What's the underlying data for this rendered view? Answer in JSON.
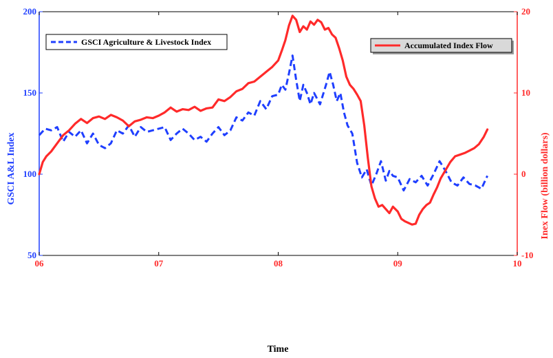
{
  "chart_data": {
    "type": "line",
    "title": "",
    "xlabel": "Time",
    "xlim": [
      2006,
      2010
    ],
    "x_tick_labels": [
      {
        "value": 2006,
        "label": "06"
      },
      {
        "value": 2007,
        "label": "07"
      },
      {
        "value": 2008,
        "label": "08"
      },
      {
        "value": 2009,
        "label": "09"
      },
      {
        "value": 2010,
        "label": "10"
      }
    ],
    "y_left": {
      "label": "GSCI A&L Index",
      "lim": [
        50,
        200
      ],
      "ticks": [
        50,
        100,
        150,
        200
      ],
      "color": "#1f3fff"
    },
    "y_right": {
      "label": "Inex Flow (billion dollars)",
      "lim": [
        -10,
        20
      ],
      "ticks": [
        -10,
        0,
        10,
        20
      ],
      "color": "#ff2a2a"
    },
    "grid": false,
    "series": [
      {
        "name": "GSCI Agriculture & Livestock Index",
        "axis": "left",
        "style": "dashed",
        "color": "#1f3fff",
        "x": [
          2006.0,
          2006.05,
          2006.1,
          2006.15,
          2006.2,
          2006.25,
          2006.3,
          2006.35,
          2006.4,
          2006.45,
          2006.5,
          2006.55,
          2006.6,
          2006.65,
          2006.7,
          2006.75,
          2006.8,
          2006.85,
          2006.9,
          2006.95,
          2007.0,
          2007.05,
          2007.1,
          2007.15,
          2007.2,
          2007.25,
          2007.3,
          2007.35,
          2007.4,
          2007.45,
          2007.5,
          2007.55,
          2007.6,
          2007.65,
          2007.7,
          2007.75,
          2007.8,
          2007.85,
          2007.9,
          2007.95,
          2008.0,
          2008.03,
          2008.06,
          2008.09,
          2008.12,
          2008.15,
          2008.18,
          2008.21,
          2008.24,
          2008.27,
          2008.3,
          2008.35,
          2008.4,
          2008.43,
          2008.46,
          2008.49,
          2008.52,
          2008.55,
          2008.58,
          2008.62,
          2008.66,
          2008.7,
          2008.74,
          2008.78,
          2008.82,
          2008.86,
          2008.9,
          2008.93,
          2008.96,
          2009.0,
          2009.05,
          2009.1,
          2009.15,
          2009.2,
          2009.25,
          2009.3,
          2009.35,
          2009.4,
          2009.45,
          2009.5,
          2009.55,
          2009.6,
          2009.65,
          2009.7,
          2009.75
        ],
        "values": [
          124,
          128,
          127,
          129,
          120,
          126,
          123,
          127,
          119,
          125,
          118,
          116,
          119,
          127,
          125,
          130,
          123,
          129,
          126,
          127,
          128,
          129,
          121,
          125,
          128,
          125,
          121,
          123,
          120,
          125,
          129,
          124,
          127,
          135,
          133,
          138,
          136,
          145,
          140,
          148,
          149,
          155,
          152,
          162,
          173,
          158,
          145,
          155,
          150,
          143,
          150,
          143,
          155,
          163,
          155,
          145,
          150,
          138,
          130,
          125,
          107,
          98,
          103,
          93,
          100,
          108,
          96,
          102,
          99,
          98,
          90,
          97,
          95,
          99,
          93,
          100,
          108,
          102,
          95,
          93,
          98,
          94,
          93,
          91,
          99
        ]
      },
      {
        "name": "Accumulated Index Flow",
        "axis": "right",
        "style": "solid",
        "color": "#ff2a2a",
        "x": [
          2006.0,
          2006.03,
          2006.06,
          2006.1,
          2006.15,
          2006.2,
          2006.25,
          2006.3,
          2006.35,
          2006.4,
          2006.45,
          2006.5,
          2006.55,
          2006.6,
          2006.65,
          2006.7,
          2006.75,
          2006.8,
          2006.85,
          2006.9,
          2006.95,
          2007.0,
          2007.05,
          2007.1,
          2007.15,
          2007.2,
          2007.25,
          2007.3,
          2007.35,
          2007.4,
          2007.45,
          2007.5,
          2007.55,
          2007.6,
          2007.65,
          2007.7,
          2007.75,
          2007.8,
          2007.85,
          2007.9,
          2007.95,
          2008.0,
          2008.03,
          2008.06,
          2008.09,
          2008.12,
          2008.15,
          2008.18,
          2008.21,
          2008.24,
          2008.27,
          2008.3,
          2008.33,
          2008.36,
          2008.39,
          2008.42,
          2008.45,
          2008.48,
          2008.51,
          2008.54,
          2008.57,
          2008.6,
          2008.63,
          2008.66,
          2008.69,
          2008.72,
          2008.75,
          2008.78,
          2008.81,
          2008.84,
          2008.87,
          2008.9,
          2008.93,
          2008.96,
          2009.0,
          2009.03,
          2009.06,
          2009.09,
          2009.12,
          2009.15,
          2009.18,
          2009.21,
          2009.24,
          2009.27,
          2009.3,
          2009.33,
          2009.36,
          2009.4,
          2009.44,
          2009.48,
          2009.52,
          2009.56,
          2009.6,
          2009.64,
          2009.68,
          2009.72,
          2009.75
        ],
        "values": [
          0,
          1.5,
          2.2,
          2.8,
          3.8,
          4.8,
          5.4,
          6.2,
          6.8,
          6.3,
          6.9,
          7.1,
          6.8,
          7.3,
          7.0,
          6.6,
          5.9,
          6.5,
          6.7,
          7.0,
          6.9,
          7.2,
          7.6,
          8.2,
          7.7,
          8.0,
          7.9,
          8.3,
          7.8,
          8.1,
          8.2,
          9.2,
          9.0,
          9.5,
          10.2,
          10.5,
          11.2,
          11.4,
          12.0,
          12.6,
          13.2,
          14.0,
          15.2,
          16.5,
          18.3,
          19.5,
          19.0,
          17.5,
          18.2,
          17.8,
          18.8,
          18.4,
          19.0,
          18.7,
          17.8,
          18.0,
          17.2,
          16.8,
          15.5,
          14.0,
          12.0,
          11.0,
          10.5,
          9.8,
          9.0,
          6.0,
          2.0,
          -1.5,
          -3.0,
          -4.0,
          -3.8,
          -4.3,
          -4.8,
          -4.0,
          -4.6,
          -5.5,
          -5.8,
          -6.0,
          -6.2,
          -6.1,
          -5.0,
          -4.3,
          -3.8,
          -3.5,
          -2.5,
          -1.6,
          -0.5,
          0.5,
          1.5,
          2.2,
          2.4,
          2.6,
          2.9,
          3.2,
          3.7,
          4.6,
          5.5
        ]
      }
    ],
    "legend": [
      {
        "series": 0,
        "placement": "top-left",
        "text": "GSCI Agriculture & Livestock Index"
      },
      {
        "series": 1,
        "placement": "top-right",
        "text": "Accumulated Index Flow"
      }
    ]
  }
}
